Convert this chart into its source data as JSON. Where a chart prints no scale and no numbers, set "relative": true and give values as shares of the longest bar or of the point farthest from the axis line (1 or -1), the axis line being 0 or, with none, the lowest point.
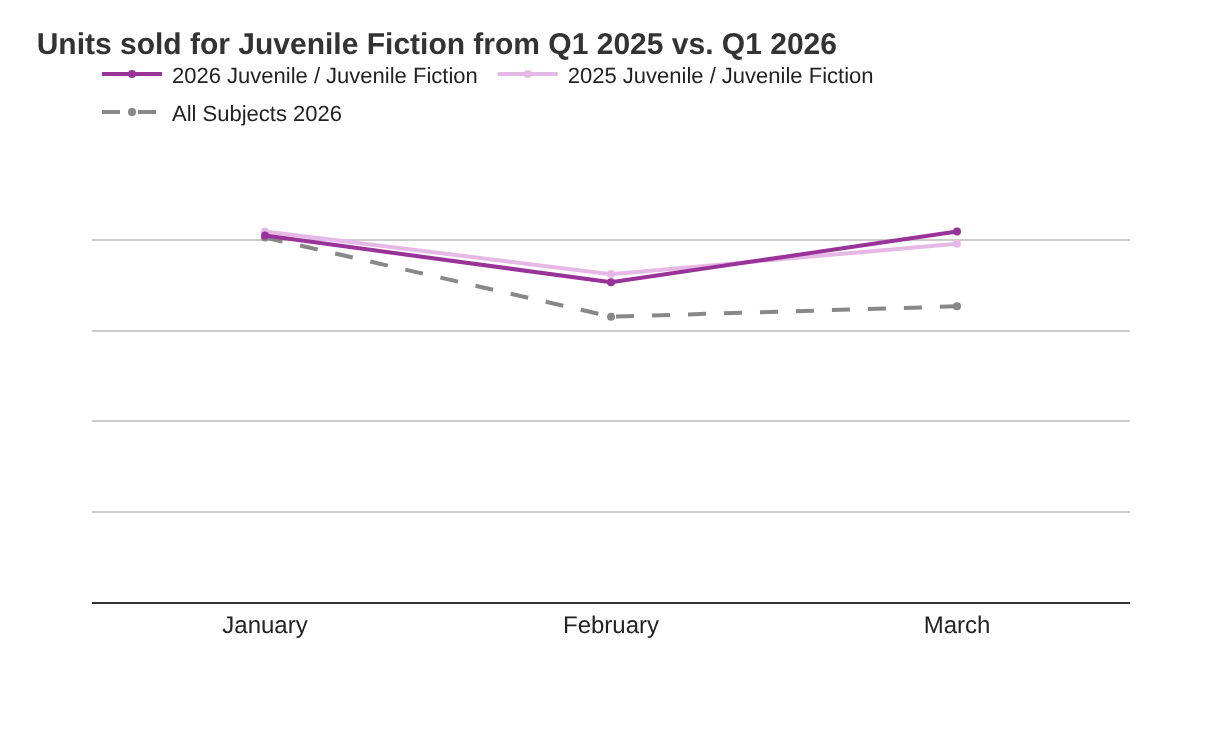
{
  "chart_data": {
    "type": "line",
    "title": "Units sold for Juvenile Fiction from Q1 2025 vs. Q1 2026",
    "categories": [
      "January",
      "February",
      "March"
    ],
    "relative": true,
    "grid": "y",
    "legend": "top left",
    "marker": "circle",
    "series": [
      {
        "name": "2026 Juvenile / Juvenile Fiction",
        "color": "#993399",
        "values": [
          0.989,
          0.863,
          1.0
        ]
      },
      {
        "name": "2025 Juvenile / Juvenile Fiction",
        "color": "#e6b8e6",
        "values": [
          1.0,
          0.885,
          0.967
        ]
      },
      {
        "name": "All Subjects 2026",
        "color": "#888888",
        "line_style": "dashed",
        "values": [
          0.984,
          0.77,
          0.798
        ]
      }
    ]
  }
}
